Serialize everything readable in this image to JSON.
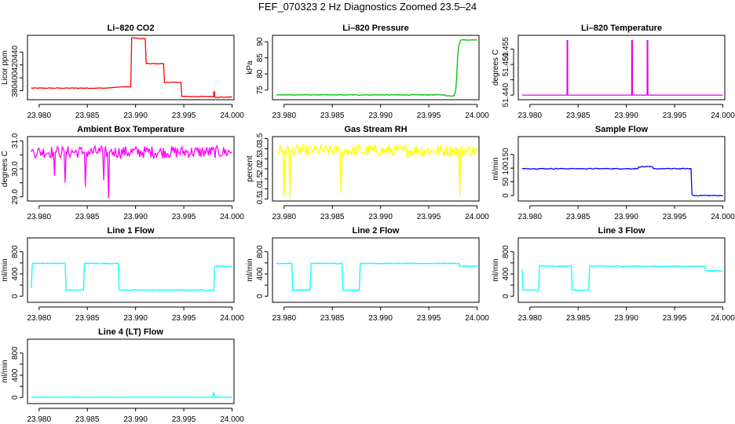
{
  "figure": {
    "title": "FEF_070323  2 Hz Diagnostics Zoomed 23.5–24"
  },
  "chart_data": [
    {
      "type": "line",
      "title": "Li–820 CO2",
      "ylabel": "Licor ppm",
      "color": "#ff0000",
      "xlim": [
        23.9788,
        24.0002
      ],
      "ylim": [
        366,
        466
      ],
      "xticks": [
        "23.980",
        "23.985",
        "23.990",
        "23.995",
        "24.000"
      ],
      "yticks": [
        {
          "value": 380,
          "label": "380"
        },
        {
          "value": 400,
          "label": "400"
        },
        {
          "value": 420,
          "label": "420"
        },
        {
          "value": 440,
          "label": "440"
        }
      ],
      "noise": 0.6,
      "x": [
        23.9792,
        23.983,
        23.987,
        23.9885,
        23.9895,
        23.9896,
        23.9899,
        23.9905,
        23.991,
        23.9911,
        23.9929,
        23.993,
        23.9947,
        23.9948,
        23.9981,
        23.9981,
        23.9982,
        23.9982,
        24.0
      ],
      "y": [
        384,
        384,
        384,
        386,
        386,
        462,
        462,
        461,
        461,
        422,
        422,
        393,
        393,
        371,
        371,
        378,
        378,
        370,
        370
      ]
    },
    {
      "type": "line",
      "title": "Li–820 Pressure",
      "ylabel": "kPa",
      "color": "#00c000",
      "xlim": [
        23.9788,
        24.0002
      ],
      "ylim": [
        72,
        92
      ],
      "xticks": [
        "23.980",
        "23.985",
        "23.990",
        "23.995",
        "24.000"
      ],
      "yticks": [
        {
          "value": 75,
          "label": "75"
        },
        {
          "value": 80,
          "label": "80"
        },
        {
          "value": 85,
          "label": "85"
        },
        {
          "value": 90,
          "label": "90"
        }
      ],
      "noise": 0.1,
      "x": [
        23.9792,
        23.9967,
        23.9968,
        23.9976,
        23.9978,
        23.9979,
        23.998,
        23.9981,
        23.9982,
        23.9983,
        23.9985,
        24.0
      ],
      "y": [
        73.5,
        73.5,
        73.2,
        73.2,
        75,
        80,
        86,
        89,
        89.5,
        90.5,
        90.6,
        90.6
      ]
    },
    {
      "type": "line",
      "title": "Li–820 Temperature",
      "ylabel": "degrees C",
      "color": "#e000e0",
      "xlim": [
        23.9788,
        24.0002
      ],
      "ylim": [
        51.4385,
        51.4595
      ],
      "xticks": [
        "23.980",
        "23.985",
        "23.990",
        "23.995",
        "24.000"
      ],
      "yticks": [
        {
          "value": 51.44,
          "label": "51.440"
        },
        {
          "value": 51.445,
          "label": ""
        },
        {
          "value": 51.45,
          "label": "51.450"
        },
        {
          "value": 51.455,
          "label": "51.455"
        }
      ],
      "noise": 0,
      "x": [
        23.9792,
        23.98385,
        23.98386,
        23.98392,
        23.98393,
        23.99055,
        23.99056,
        23.99062,
        23.99063,
        23.99215,
        23.99216,
        23.99222,
        23.99223,
        24.0
      ],
      "y": [
        51.44,
        51.44,
        51.4578,
        51.4578,
        51.44,
        51.44,
        51.4578,
        51.4578,
        51.44,
        51.44,
        51.4578,
        51.4578,
        51.44,
        51.44
      ]
    },
    {
      "type": "line",
      "title": "Ambient Box Temperature",
      "ylabel": "degrees C",
      "color": "#ff00ff",
      "xlim": [
        23.9788,
        24.0002
      ],
      "ylim": [
        28.85,
        31.15
      ],
      "xticks": [
        "23.980",
        "23.985",
        "23.990",
        "23.995",
        "24.000"
      ],
      "yticks": [
        {
          "value": 29.0,
          "label": "29.0"
        },
        {
          "value": 29.5,
          "label": ""
        },
        {
          "value": 30.0,
          "label": "30.0"
        },
        {
          "value": 30.5,
          "label": ""
        },
        {
          "value": 31.0,
          "label": "31.0"
        }
      ],
      "noise": 0.22,
      "x": [
        23.9792,
        23.9815,
        23.9816,
        23.9817,
        23.9826,
        23.9827,
        23.9828,
        23.9847,
        23.9848,
        23.9849,
        23.9866,
        23.9867,
        23.9868,
        23.9871,
        23.9872,
        23.9873,
        24.0
      ],
      "y": [
        30.6,
        30.6,
        29.75,
        30.6,
        30.6,
        29.5,
        30.6,
        30.6,
        29.35,
        30.6,
        30.6,
        29.6,
        30.6,
        30.6,
        28.95,
        30.6,
        30.6
      ]
    },
    {
      "type": "line",
      "title": "Gas Stream RH",
      "ylabel": "percent",
      "color": "#ffff00",
      "xlim": [
        23.9788,
        24.0002
      ],
      "ylim": [
        0.4,
        3.6
      ],
      "xticks": [
        "23.980",
        "23.985",
        "23.990",
        "23.995",
        "24.000"
      ],
      "yticks": [
        {
          "value": 0.5,
          "label": "0.5"
        },
        {
          "value": 1.0,
          "label": "1.0"
        },
        {
          "value": 1.5,
          "label": "1.5"
        },
        {
          "value": 2.0,
          "label": "2.0"
        },
        {
          "value": 2.5,
          "label": "2.5"
        },
        {
          "value": 3.0,
          "label": "3.0"
        },
        {
          "value": 3.5,
          "label": "3.5"
        }
      ],
      "noise": 0.3,
      "x": [
        23.9792,
        23.9799,
        23.98,
        23.9801,
        23.9805,
        23.9806,
        23.9807,
        23.9858,
        23.9859,
        23.986,
        23.9981,
        23.9982,
        23.9983,
        24.0
      ],
      "y": [
        2.9,
        2.9,
        0.6,
        2.9,
        2.9,
        0.5,
        2.9,
        2.9,
        0.8,
        2.9,
        2.9,
        0.6,
        2.9,
        2.9
      ]
    },
    {
      "type": "line",
      "title": "Sample Flow",
      "ylabel": "ml/min",
      "color": "#0000ff",
      "xlim": [
        23.9788,
        24.0002
      ],
      "ylim": [
        -20,
        215
      ],
      "xticks": [
        "23.980",
        "23.985",
        "23.990",
        "23.995",
        "24.000"
      ],
      "yticks": [
        {
          "value": 0,
          "label": "0"
        },
        {
          "value": 50,
          "label": "50"
        },
        {
          "value": 100,
          "label": "100"
        },
        {
          "value": 150,
          "label": "150"
        }
      ],
      "noise": 1.5,
      "x": [
        23.9792,
        23.9912,
        23.9913,
        23.9927,
        23.9928,
        23.9967,
        23.9968,
        23.9969,
        24.0
      ],
      "y": [
        98,
        98,
        105,
        105,
        98,
        98,
        5,
        0,
        0
      ]
    },
    {
      "type": "line",
      "title": "Line 1 Flow",
      "ylabel": "ml/min",
      "color": "#00ffff",
      "xlim": [
        23.9788,
        24.0002
      ],
      "ylim": [
        -110,
        1050
      ],
      "xticks": [
        "23.980",
        "23.985",
        "23.990",
        "23.995",
        "24.000"
      ],
      "yticks": [
        {
          "value": 0,
          "label": "0"
        },
        {
          "value": 200,
          "label": ""
        },
        {
          "value": 400,
          "label": "400"
        },
        {
          "value": 600,
          "label": ""
        },
        {
          "value": 800,
          "label": "800"
        }
      ],
      "noise": 8,
      "x": [
        23.9792,
        23.9793,
        23.9794,
        23.9827,
        23.9828,
        23.9846,
        23.9847,
        23.9882,
        23.9883,
        23.9981,
        23.9982,
        23.9983,
        24.0
      ],
      "y": [
        150,
        590,
        590,
        590,
        110,
        110,
        590,
        590,
        110,
        110,
        520,
        540,
        540
      ]
    },
    {
      "type": "line",
      "title": "Line 2 Flow",
      "ylabel": "ml/min",
      "color": "#00ffff",
      "xlim": [
        23.9788,
        24.0002
      ],
      "ylim": [
        -110,
        1050
      ],
      "xticks": [
        "23.980",
        "23.985",
        "23.990",
        "23.995",
        "24.000"
      ],
      "yticks": [
        {
          "value": 0,
          "label": "0"
        },
        {
          "value": 200,
          "label": ""
        },
        {
          "value": 400,
          "label": "400"
        },
        {
          "value": 600,
          "label": ""
        },
        {
          "value": 800,
          "label": "800"
        }
      ],
      "noise": 8,
      "x": [
        23.9792,
        23.9808,
        23.9809,
        23.9827,
        23.9828,
        23.986,
        23.9861,
        23.9878,
        23.9879,
        23.9981,
        23.9982,
        24.0
      ],
      "y": [
        590,
        590,
        110,
        110,
        590,
        590,
        110,
        110,
        590,
        590,
        540,
        540
      ]
    },
    {
      "type": "line",
      "title": "Line 3 Flow",
      "ylabel": "ml/min",
      "color": "#00ffff",
      "xlim": [
        23.9788,
        24.0002
      ],
      "ylim": [
        -110,
        1050
      ],
      "xticks": [
        "23.980",
        "23.985",
        "23.990",
        "23.995",
        "24.000"
      ],
      "yticks": [
        {
          "value": 0,
          "label": "0"
        },
        {
          "value": 200,
          "label": ""
        },
        {
          "value": 400,
          "label": "400"
        },
        {
          "value": 600,
          "label": ""
        },
        {
          "value": 800,
          "label": "800"
        }
      ],
      "noise": 8,
      "x": [
        23.9792,
        23.9793,
        23.9794,
        23.9809,
        23.981,
        23.9843,
        23.9844,
        23.9861,
        23.9862,
        23.9981,
        23.9982,
        24.0
      ],
      "y": [
        480,
        110,
        110,
        110,
        540,
        540,
        110,
        110,
        540,
        540,
        460,
        460
      ]
    },
    {
      "type": "line",
      "title": "Line 4 (LT) Flow",
      "ylabel": "ml/min",
      "color": "#00ffff",
      "xlim": [
        23.9788,
        24.0002
      ],
      "ylim": [
        -110,
        1050
      ],
      "xticks": [
        "23.980",
        "23.985",
        "23.990",
        "23.995",
        "24.000"
      ],
      "yticks": [
        {
          "value": 0,
          "label": "0"
        },
        {
          "value": 200,
          "label": ""
        },
        {
          "value": 400,
          "label": "400"
        },
        {
          "value": 600,
          "label": ""
        },
        {
          "value": 800,
          "label": "800"
        }
      ],
      "noise": 2,
      "x": [
        23.9792,
        23.998,
        23.9981,
        23.9982,
        24.0
      ],
      "y": [
        5,
        5,
        100,
        5,
        5
      ]
    }
  ]
}
